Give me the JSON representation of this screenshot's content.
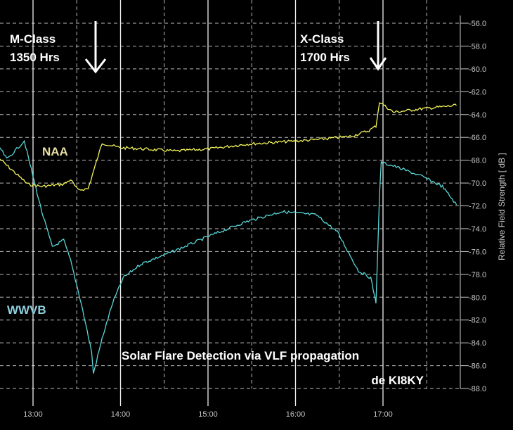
{
  "chart_data": {
    "type": "line",
    "title": "Solar Flare Detection via VLF propagation",
    "subtitle": "de KI8KY",
    "xlabel": "",
    "ylabel": "Relative Field Strength [ dB ]",
    "xlim": [
      12.62,
      17.85
    ],
    "ylim": [
      -88,
      -56
    ],
    "x_ticks": [
      {
        "value": 13,
        "label": "13:00"
      },
      {
        "value": 14,
        "label": "14:00"
      },
      {
        "value": 15,
        "label": "15:00"
      },
      {
        "value": 16,
        "label": "16:00"
      },
      {
        "value": 17,
        "label": "17:00"
      }
    ],
    "y_ticks": [
      "-56.0",
      "-58.0",
      "-60.0",
      "-62.0",
      "-64.0",
      "-66.0",
      "-68.0",
      "-70.0",
      "-72.0",
      "-74.0",
      "-76.0",
      "-78.0",
      "-80.0",
      "-82.0",
      "-84.0",
      "-86.0",
      "-88.0"
    ],
    "grid": true,
    "series": [
      {
        "name": "NAA",
        "color": "#f5f55a",
        "x": [
          12.62,
          12.78,
          12.94,
          13.1,
          13.35,
          13.43,
          13.51,
          13.63,
          13.71,
          13.79,
          13.99,
          14.23,
          14.63,
          15.03,
          15.43,
          15.84,
          16.24,
          16.64,
          16.84,
          16.92,
          16.96,
          17.12,
          17.44,
          17.84
        ],
        "y": [
          -67.9,
          -69.0,
          -70.1,
          -70.3,
          -70.1,
          -69.7,
          -70.6,
          -70.5,
          -68.5,
          -66.5,
          -66.9,
          -67.0,
          -67.2,
          -67.0,
          -66.6,
          -66.4,
          -66.2,
          -65.9,
          -65.4,
          -65.0,
          -62.9,
          -63.8,
          -63.5,
          -63.2
        ]
      },
      {
        "name": "WWVB",
        "color": "#5ad7d7",
        "x": [
          12.62,
          12.7,
          12.78,
          12.9,
          12.98,
          13.1,
          13.22,
          13.35,
          13.43,
          13.55,
          13.67,
          13.69,
          13.79,
          13.91,
          14.03,
          14.23,
          14.63,
          15.03,
          15.43,
          15.84,
          16.24,
          16.48,
          16.72,
          16.86,
          16.92,
          16.96,
          16.98,
          17.12,
          17.44,
          17.68,
          17.84
        ],
        "y": [
          -66.9,
          -67.9,
          -67.3,
          -66.3,
          -68.8,
          -72.5,
          -75.6,
          -75.0,
          -76.8,
          -80.5,
          -84.8,
          -86.7,
          -83.6,
          -80.5,
          -78.3,
          -77.1,
          -75.9,
          -74.6,
          -73.4,
          -72.5,
          -72.8,
          -74.3,
          -77.7,
          -78.3,
          -80.5,
          -71.2,
          -68.2,
          -68.5,
          -69.4,
          -70.3,
          -71.9
        ]
      }
    ],
    "annotations": {
      "m_class": {
        "line1": "M-Class",
        "line2": "1350 Hrs",
        "time": 13.83
      },
      "x_class": {
        "line1": "X-Class",
        "line2": "1700 Hrs",
        "time": 16.95
      },
      "naa_label": "NAA",
      "wwvb_label": "WWVB"
    },
    "legend": "inline labels"
  }
}
